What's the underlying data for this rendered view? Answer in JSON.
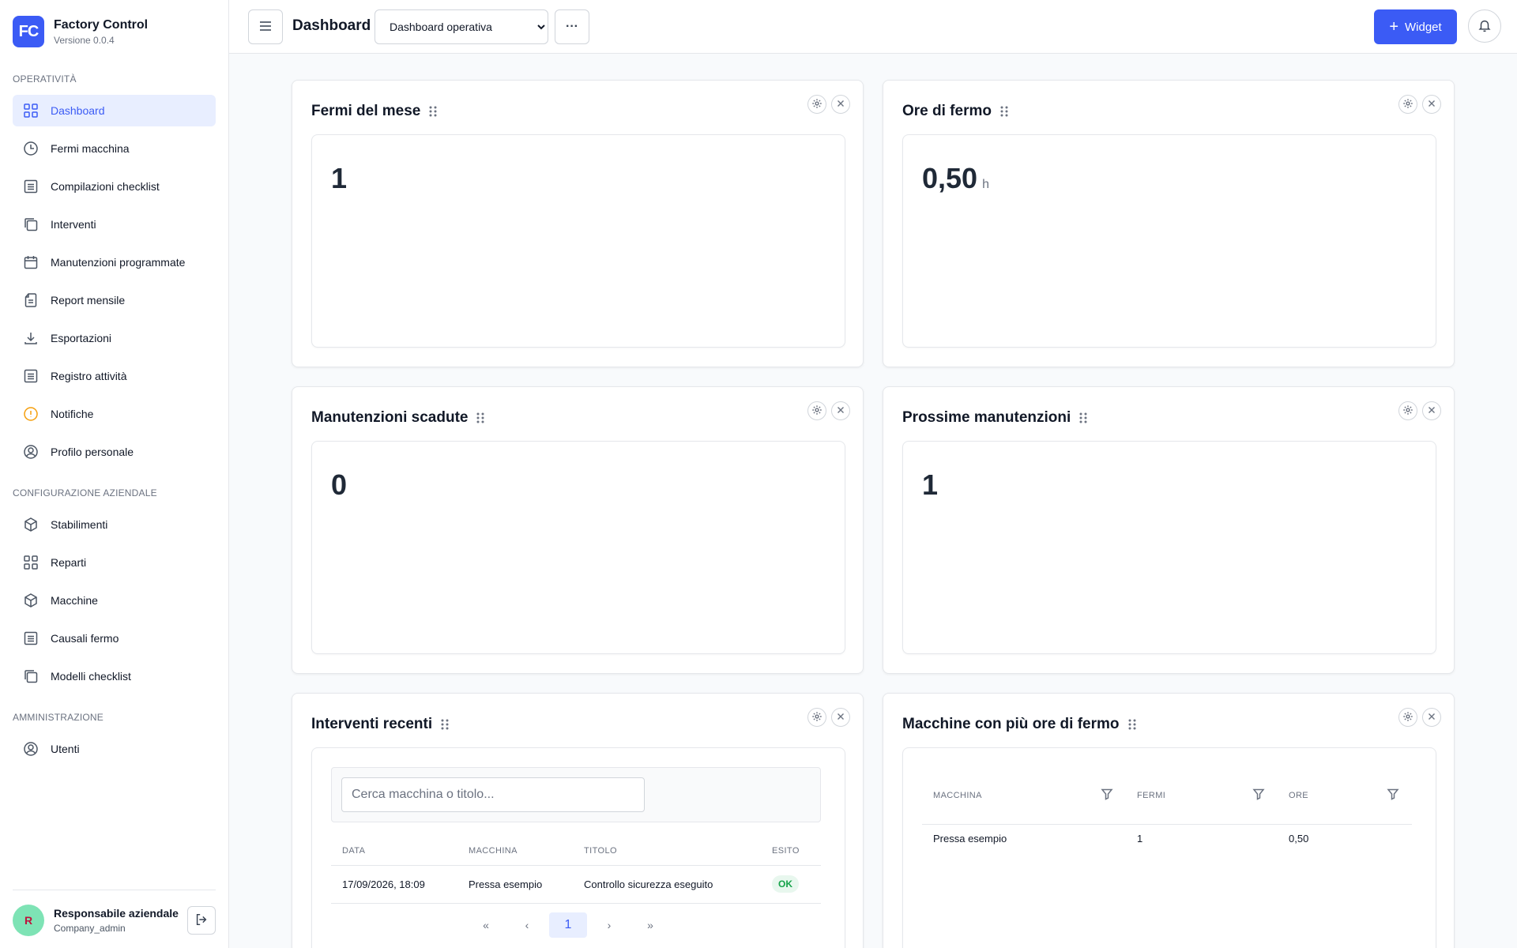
{
  "brand": {
    "logo_text": "FC",
    "name": "Factory Control",
    "version": "Versione 0.0.4"
  },
  "sidebar": {
    "sections": [
      {
        "title": "OPERATIVITÀ",
        "items": [
          {
            "label": "Dashboard",
            "icon": "grid-icon",
            "active": true
          },
          {
            "label": "Fermi macchina",
            "icon": "clock-icon"
          },
          {
            "label": "Compilazioni checklist",
            "icon": "list-icon"
          },
          {
            "label": "Interventi",
            "icon": "copy-icon"
          },
          {
            "label": "Manutenzioni programmate",
            "icon": "calendar-icon"
          },
          {
            "label": "Report mensile",
            "icon": "document-icon"
          },
          {
            "label": "Esportazioni",
            "icon": "download-icon"
          },
          {
            "label": "Registro attività",
            "icon": "list-icon"
          },
          {
            "label": "Notifiche",
            "icon": "info-icon"
          },
          {
            "label": "Profilo personale",
            "icon": "user-circle-icon"
          }
        ]
      },
      {
        "title": "CONFIGURAZIONE AZIENDALE",
        "items": [
          {
            "label": "Stabilimenti",
            "icon": "cube-icon"
          },
          {
            "label": "Reparti",
            "icon": "grid-icon"
          },
          {
            "label": "Macchine",
            "icon": "cube-icon"
          },
          {
            "label": "Causali fermo",
            "icon": "list-icon"
          },
          {
            "label": "Modelli checklist",
            "icon": "copy-icon"
          }
        ]
      },
      {
        "title": "AMMINISTRAZIONE",
        "items": [
          {
            "label": "Utenti",
            "icon": "user-circle-icon"
          }
        ]
      }
    ]
  },
  "user": {
    "initial": "R",
    "name": "Responsabile aziendale",
    "role": "Company_admin"
  },
  "topbar": {
    "title": "Dashboard",
    "dashboard_select": "Dashboard operativa",
    "more_label": "···",
    "widget_button": "Widget"
  },
  "widgets": {
    "fermi_mese": {
      "title": "Fermi del mese",
      "value": "1"
    },
    "ore_fermo": {
      "title": "Ore di fermo",
      "value": "0,50",
      "unit": "h"
    },
    "manutenzioni_scadute": {
      "title": "Manutenzioni scadute",
      "value": "0"
    },
    "prossime_manutenzioni": {
      "title": "Prossime manutenzioni",
      "value": "1"
    },
    "interventi_recenti": {
      "title": "Interventi recenti",
      "search_placeholder": "Cerca macchina o titolo...",
      "columns": [
        "DATA",
        "MACCHINA",
        "TITOLO",
        "ESITO"
      ],
      "rows": [
        {
          "data": "17/09/2026, 18:09",
          "macchina": "Pressa esempio",
          "titolo": "Controllo sicurezza eseguito",
          "esito": "OK"
        }
      ],
      "pager": {
        "first": "«",
        "prev": "‹",
        "current": "1",
        "next": "›",
        "last": "»"
      }
    },
    "macchine_ore_fermo": {
      "title": "Macchine con più ore di fermo",
      "columns": [
        "MACCHINA",
        "FERMI",
        "ORE"
      ],
      "rows": [
        {
          "macchina": "Pressa esempio",
          "fermi": "1",
          "ore": "0,50"
        }
      ]
    }
  },
  "colors": {
    "accent": "#3b5bf5",
    "active_bg": "#e8eeff",
    "ok_green": "#16a34a",
    "warning": "#f59e0b"
  }
}
